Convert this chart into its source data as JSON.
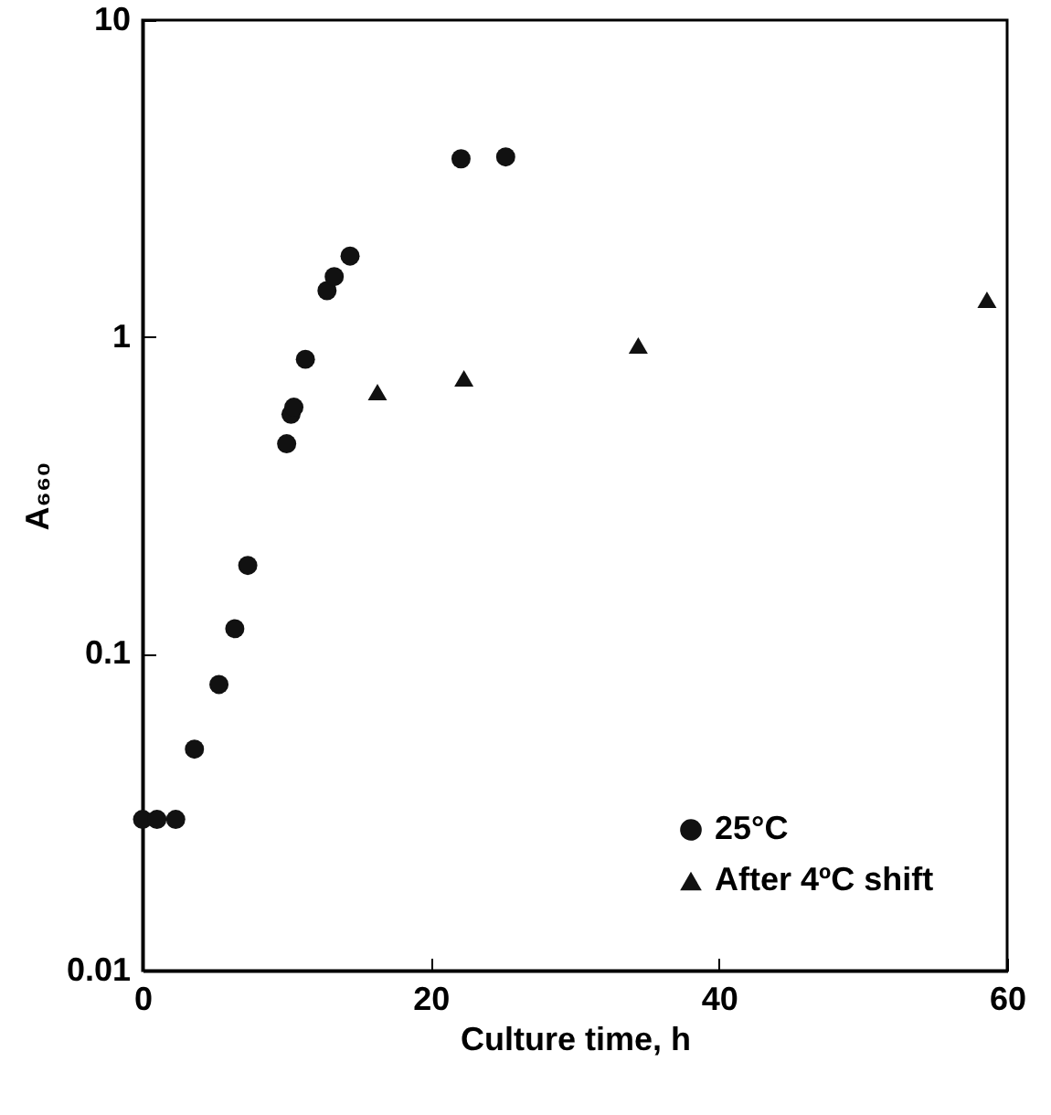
{
  "chart_data": {
    "type": "scatter",
    "xlabel": "Culture time, h",
    "ylabel": "A₆₆₀",
    "log": "y",
    "xlim": [
      0,
      60
    ],
    "xticks": [
      0,
      20,
      40,
      60
    ],
    "ylim": [
      0.01,
      10
    ],
    "yticks": [
      0.01,
      0.1,
      1,
      10
    ],
    "grid": false,
    "legend": "bottom right",
    "series": [
      {
        "name": "25°C",
        "color": "#111111",
        "marker": "circle",
        "x": [
          0,
          1.0,
          2.3,
          3.6,
          5.3,
          6.4,
          7.3,
          10.0,
          10.3,
          10.5,
          11.3,
          12.8,
          13.3,
          14.4,
          22.1,
          25.2
        ],
        "values": [
          0.03,
          0.03,
          0.03,
          0.05,
          0.08,
          0.12,
          0.19,
          0.46,
          0.57,
          0.6,
          0.85,
          1.4,
          1.55,
          1.8,
          3.65,
          3.7
        ]
      },
      {
        "name": "After 4ºC shift",
        "color": "#111111",
        "marker": "triangle",
        "x": [
          16.3,
          22.3,
          34.4,
          58.6
        ],
        "values": [
          0.67,
          0.74,
          0.94,
          1.31
        ]
      }
    ]
  }
}
